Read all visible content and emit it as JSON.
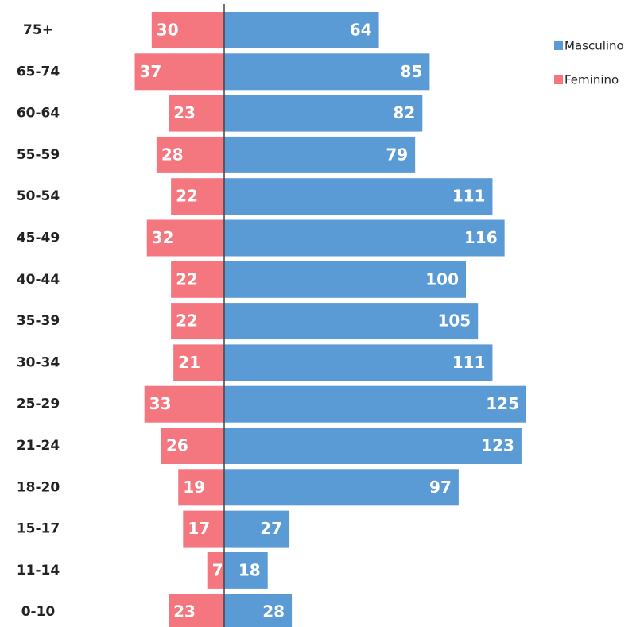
{
  "chart_data": {
    "type": "pyramid",
    "categories": [
      "75+",
      "65-74",
      "60-64",
      "55-59",
      "50-54",
      "45-49",
      "40-44",
      "35-39",
      "30-34",
      "25-29",
      "21-24",
      "18-20",
      "15-17",
      "11-14",
      "0-10"
    ],
    "series": [
      {
        "name": "Masculino",
        "color": "#5b9bd5",
        "values": [
          64,
          85,
          82,
          79,
          111,
          116,
          100,
          105,
          111,
          125,
          123,
          97,
          27,
          18,
          28
        ]
      },
      {
        "name": "Feminino",
        "color": "#f4777f",
        "values": [
          30,
          37,
          23,
          28,
          22,
          32,
          22,
          22,
          21,
          33,
          26,
          19,
          17,
          7,
          23
        ]
      }
    ],
    "legend": "top-right"
  }
}
